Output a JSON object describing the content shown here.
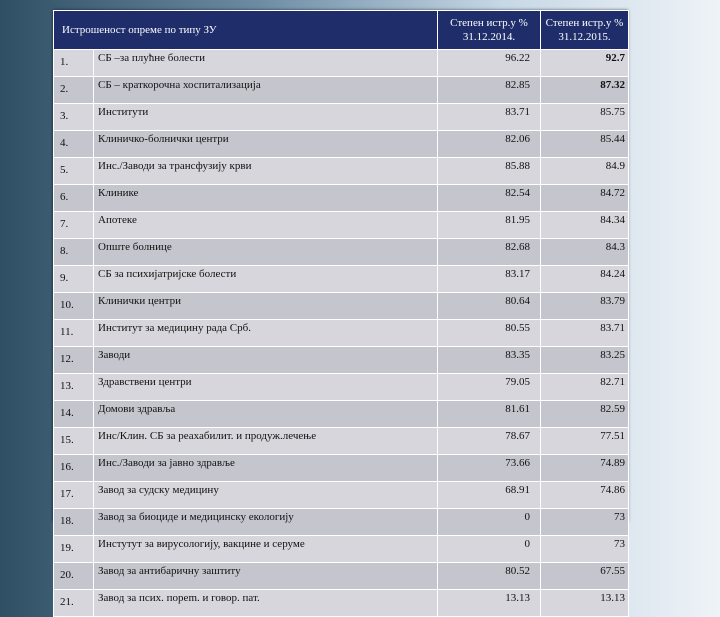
{
  "table": {
    "title": "Истрошеност опреме по типу ЗУ",
    "col_a": "Степен истр.у % 31.12.2014.",
    "col_b": "Степен истр.у % 31.12.2015.",
    "rows": [
      {
        "num": "1.",
        "name": "СБ –за плућне болести",
        "a": "96.22",
        "b": "92.7",
        "b_bold": true
      },
      {
        "num": "2.",
        "name": "СБ – краткорочна хоспитализација",
        "a": "82.85",
        "b": "87.32",
        "b_bold": true
      },
      {
        "num": "3.",
        "name": "Институти",
        "a": "83.71",
        "b": "85.75"
      },
      {
        "num": "4.",
        "name": "Клиничко-болнички центри",
        "a": "82.06",
        "b": "85.44"
      },
      {
        "num": "5.",
        "name": "Инс./Заводи за трансфузију крви",
        "a": "85.88",
        "b": "84.9"
      },
      {
        "num": "6.",
        "name": "Клинике",
        "a": "82.54",
        "b": "84.72"
      },
      {
        "num": "7.",
        "name": "Апотеке",
        "a": "81.95",
        "b": "84.34"
      },
      {
        "num": "8.",
        "name": "Опште болнице",
        "a": "82.68",
        "b": "84.3"
      },
      {
        "num": "9.",
        "name": "СБ за психијатријске болести",
        "a": "83.17",
        "b": "84.24"
      },
      {
        "num": "10.",
        "name": "Клинички центри",
        "a": "80.64",
        "b": "83.79"
      },
      {
        "num": "11.",
        "name": "Институт за медицину рада Срб.",
        "a": "80.55",
        "b": "83.71"
      },
      {
        "num": "12.",
        "name": "Заводи",
        "a": "83.35",
        "b": "83.25"
      },
      {
        "num": "13.",
        "name": "Здравствени центри",
        "a": "79.05",
        "b": "82.71"
      },
      {
        "num": "14.",
        "name": "Домови здравља",
        "a": "81.61",
        "b": "82.59"
      },
      {
        "num": "15.",
        "name": "Инс/Клин. СБ за реахабилит. и продуж.лечење",
        "a": "78.67",
        "b": "77.51"
      },
      {
        "num": "16.",
        "name": "Инс./Заводи за јавно здравље",
        "a": "73.66",
        "b": "74.89"
      },
      {
        "num": "17.",
        "name": "Завод за судску медицину",
        "a": "68.91",
        "b": "74.86"
      },
      {
        "num": "18.",
        "name": "Завод за биоциде и медицинску екологију",
        "a": "0",
        "b": "73"
      },
      {
        "num": "19.",
        "name": "Инстутут за вирусологију, вакцине и серуме",
        "a": "0",
        "b": "73"
      },
      {
        "num": "20.",
        "name": "Завод за антибаричну заштиту",
        "a": "80.52",
        "b": "67.55"
      },
      {
        "num": "21.",
        "name": "Завод за псих. пореm. и говор. пат.",
        "a": "13.13",
        "b": "13.13"
      }
    ]
  }
}
